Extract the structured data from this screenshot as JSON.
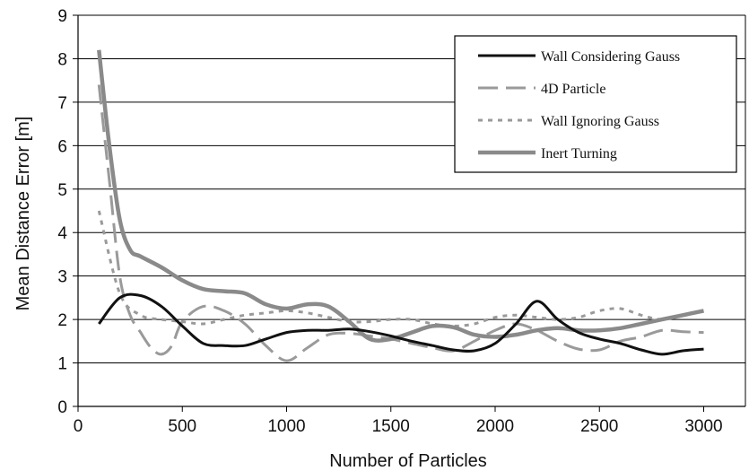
{
  "chart_data": {
    "type": "line",
    "title": "",
    "xlabel": "Number of Particles",
    "ylabel": "Mean Distance Error [m]",
    "xlim": [
      0,
      3200
    ],
    "ylim": [
      0,
      9
    ],
    "xticks": [
      0,
      500,
      1000,
      1500,
      2000,
      2500,
      3000
    ],
    "yticks": [
      0,
      1,
      2,
      3,
      4,
      5,
      6,
      7,
      8,
      9
    ],
    "grid": "horizontal",
    "legend_position": "top-right",
    "series": [
      {
        "name": "Wall Considering Gauss",
        "color": "#111111",
        "dash": "solid",
        "x": [
          100,
          200,
          300,
          400,
          500,
          600,
          700,
          800,
          900,
          1000,
          1100,
          1200,
          1300,
          1400,
          1500,
          1600,
          1700,
          1800,
          1900,
          2000,
          2100,
          2200,
          2300,
          2400,
          2500,
          2600,
          2700,
          2800,
          2900,
          3000
        ],
        "values": [
          1.9,
          2.5,
          2.55,
          2.3,
          1.85,
          1.45,
          1.4,
          1.4,
          1.55,
          1.7,
          1.75,
          1.75,
          1.78,
          1.72,
          1.62,
          1.5,
          1.4,
          1.3,
          1.28,
          1.45,
          1.9,
          2.42,
          2.0,
          1.7,
          1.55,
          1.45,
          1.3,
          1.2,
          1.28,
          1.32
        ]
      },
      {
        "name": "4D Particle",
        "color": "#9a9a9a",
        "dash": "long-dash",
        "x": [
          100,
          150,
          200,
          250,
          300,
          350,
          400,
          450,
          500,
          600,
          700,
          800,
          900,
          1000,
          1100,
          1200,
          1300,
          1400,
          1500,
          1600,
          1700,
          1800,
          1900,
          2000,
          2100,
          2200,
          2300,
          2400,
          2500,
          2600,
          2700,
          2800,
          2900,
          3000
        ],
        "values": [
          7.4,
          5.2,
          3.0,
          2.1,
          1.7,
          1.35,
          1.2,
          1.4,
          1.95,
          2.3,
          2.2,
          1.9,
          1.4,
          1.05,
          1.35,
          1.65,
          1.68,
          1.62,
          1.55,
          1.45,
          1.35,
          1.28,
          1.5,
          1.75,
          1.9,
          1.75,
          1.5,
          1.32,
          1.3,
          1.5,
          1.6,
          1.75,
          1.72,
          1.7
        ]
      },
      {
        "name": "Wall Ignoring Gauss",
        "color": "#9a9a9a",
        "dash": "short-dash",
        "x": [
          100,
          200,
          300,
          400,
          500,
          600,
          700,
          800,
          900,
          1000,
          1100,
          1200,
          1300,
          1400,
          1500,
          1600,
          1700,
          1800,
          1900,
          2000,
          2100,
          2200,
          2300,
          2400,
          2500,
          2600,
          2700,
          2800,
          2900,
          3000
        ],
        "values": [
          4.5,
          2.6,
          2.1,
          2.0,
          1.95,
          1.9,
          2.0,
          2.1,
          2.15,
          2.2,
          2.15,
          2.05,
          1.95,
          1.95,
          2.0,
          2.0,
          1.9,
          1.85,
          1.9,
          2.05,
          2.1,
          2.05,
          2.0,
          2.05,
          2.2,
          2.25,
          2.1,
          2.0,
          2.1,
          2.2
        ]
      },
      {
        "name": "Inert Turning",
        "color": "#8a8a8a",
        "dash": "solid-thick",
        "x": [
          100,
          150,
          200,
          250,
          300,
          400,
          500,
          600,
          700,
          800,
          900,
          1000,
          1100,
          1200,
          1300,
          1400,
          1500,
          1600,
          1700,
          1800,
          1900,
          2000,
          2100,
          2200,
          2300,
          2400,
          2500,
          2600,
          2700,
          2800,
          2900,
          3000
        ],
        "values": [
          8.2,
          6.0,
          4.3,
          3.6,
          3.45,
          3.2,
          2.9,
          2.7,
          2.65,
          2.6,
          2.35,
          2.25,
          2.35,
          2.3,
          1.95,
          1.55,
          1.55,
          1.7,
          1.85,
          1.82,
          1.65,
          1.6,
          1.65,
          1.75,
          1.8,
          1.75,
          1.75,
          1.8,
          1.9,
          2.0,
          2.1,
          2.2
        ]
      }
    ]
  }
}
